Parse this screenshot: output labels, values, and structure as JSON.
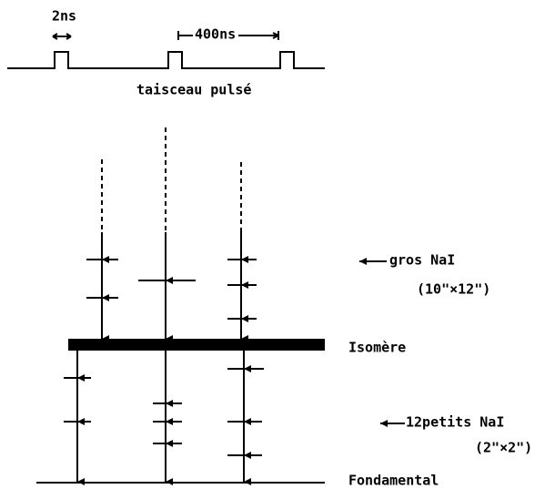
{
  "pulse_train": {
    "width_label": "2ns",
    "period_label": "400ns",
    "caption": "taisceau pulsé"
  },
  "detectors": {
    "large": {
      "label": "gros NaI",
      "size": "(10\"×12\")"
    },
    "small": {
      "label": "12petits NaI",
      "size": "(2\"×2\")"
    }
  },
  "levels": {
    "isomer": "Isomère",
    "ground": "Fondamental"
  }
}
